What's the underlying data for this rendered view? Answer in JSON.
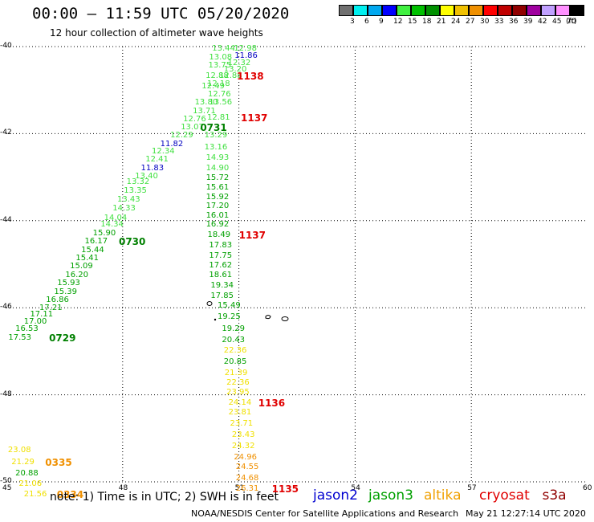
{
  "header": {
    "title": "00:00  –  11:59 UTC 05/20/2020",
    "subtitle": "12 hour collection of altimeter wave heights"
  },
  "colorbar": {
    "bins": [
      {
        "label": "3",
        "color": "#707070"
      },
      {
        "label": "6",
        "color": "#00f0f0"
      },
      {
        "label": "9",
        "color": "#00a8f0"
      },
      {
        "label": "12",
        "color": "#0000ff"
      },
      {
        "label": "15",
        "color": "#40f040"
      },
      {
        "label": "18",
        "color": "#00c000"
      },
      {
        "label": "21",
        "color": "#009000"
      },
      {
        "label": "24",
        "color": "#ffff00"
      },
      {
        "label": "27",
        "color": "#f0c000"
      },
      {
        "label": "30",
        "color": "#f09000"
      },
      {
        "label": "33",
        "color": "#ff0000"
      },
      {
        "label": "36",
        "color": "#c00000"
      },
      {
        "label": "39",
        "color": "#900000"
      },
      {
        "label": "42",
        "color": "#a000a0"
      },
      {
        "label": "45",
        "color": "#c0a0ff"
      },
      {
        "label": "70",
        "color": "#ff90ff"
      },
      {
        "label": "",
        "color": "#000000"
      }
    ],
    "unit": "(ft)"
  },
  "axes": {
    "lon_ticks": [
      "45",
      "48",
      "51",
      "54",
      "57",
      "60"
    ],
    "lat_ticks": [
      "-40",
      "-42",
      "-44",
      "-46",
      "-48",
      "-50"
    ]
  },
  "colors": {
    "light_green": "#40e040",
    "green": "#00a000",
    "blue": "#0000c0",
    "yellow": "#f0e000",
    "orange": "#f09000",
    "red": "#e00000",
    "dark_green": "#008000"
  },
  "labels": [
    {
      "t": "13.44",
      "lon": 50.31,
      "lat": -40.05,
      "c": "light_green"
    },
    {
      "t": "12.98",
      "lon": 50.87,
      "lat": -40.05,
      "c": "light_green"
    },
    {
      "t": "13.08",
      "lon": 50.23,
      "lat": -40.25,
      "c": "light_green"
    },
    {
      "t": "11.86",
      "lon": 50.89,
      "lat": -40.23,
      "c": "blue"
    },
    {
      "t": "13.75",
      "lon": 50.21,
      "lat": -40.44,
      "c": "light_green"
    },
    {
      "t": "12.32",
      "lon": 50.71,
      "lat": -40.38,
      "c": "light_green"
    },
    {
      "t": "13.20",
      "lon": 50.61,
      "lat": -40.53,
      "c": "light_green"
    },
    {
      "t": "12.88",
      "lon": 50.14,
      "lat": -40.68,
      "c": "light_green"
    },
    {
      "t": "12.88",
      "lon": 50.49,
      "lat": -40.68,
      "c": "light_green"
    },
    {
      "t": "1138",
      "lon": 50.95,
      "lat": -40.68,
      "c": "red",
      "big": true
    },
    {
      "t": "12.18",
      "lon": 50.18,
      "lat": -40.87,
      "c": "light_green"
    },
    {
      "t": "12.49",
      "lon": 50.04,
      "lat": -40.93,
      "c": "light_green"
    },
    {
      "t": "12.76",
      "lon": 50.2,
      "lat": -41.1,
      "c": "light_green"
    },
    {
      "t": "13.80",
      "lon": 49.86,
      "lat": -41.3,
      "c": "light_green"
    },
    {
      "t": "13.56",
      "lon": 50.23,
      "lat": -41.3,
      "c": "light_green"
    },
    {
      "t": "13.71",
      "lon": 49.81,
      "lat": -41.49,
      "c": "light_green"
    },
    {
      "t": "12.76",
      "lon": 49.56,
      "lat": -41.68,
      "c": "light_green"
    },
    {
      "t": "12.81",
      "lon": 50.18,
      "lat": -41.64,
      "c": "light_green"
    },
    {
      "t": "1137",
      "lon": 51.05,
      "lat": -41.64,
      "c": "red",
      "big": true
    },
    {
      "t": "13.07",
      "lon": 49.5,
      "lat": -41.87,
      "c": "light_green"
    },
    {
      "t": "0731",
      "lon": 50.0,
      "lat": -41.87,
      "c": "dark_green",
      "big": true
    },
    {
      "t": "12.29",
      "lon": 49.23,
      "lat": -42.05,
      "c": "light_green"
    },
    {
      "t": "13.29",
      "lon": 50.11,
      "lat": -42.05,
      "c": "light_green"
    },
    {
      "t": "11.82",
      "lon": 48.97,
      "lat": -42.25,
      "c": "blue"
    },
    {
      "t": "13.16",
      "lon": 50.11,
      "lat": -42.32,
      "c": "light_green"
    },
    {
      "t": "12.34",
      "lon": 48.75,
      "lat": -42.41,
      "c": "light_green"
    },
    {
      "t": "14.93",
      "lon": 50.15,
      "lat": -42.57,
      "c": "light_green"
    },
    {
      "t": "12.41",
      "lon": 48.59,
      "lat": -42.61,
      "c": "light_green"
    },
    {
      "t": "11.83",
      "lon": 48.47,
      "lat": -42.8,
      "c": "blue"
    },
    {
      "t": "14.90",
      "lon": 50.15,
      "lat": -42.81,
      "c": "light_green"
    },
    {
      "t": "13.40",
      "lon": 48.32,
      "lat": -42.98,
      "c": "light_green"
    },
    {
      "t": "15.72",
      "lon": 50.15,
      "lat": -43.03,
      "c": "green"
    },
    {
      "t": "13.32",
      "lon": 48.1,
      "lat": -43.12,
      "c": "light_green"
    },
    {
      "t": "15.61",
      "lon": 50.15,
      "lat": -43.24,
      "c": "green"
    },
    {
      "t": "13.35",
      "lon": 48.03,
      "lat": -43.32,
      "c": "light_green"
    },
    {
      "t": "15.92",
      "lon": 50.15,
      "lat": -43.46,
      "c": "green"
    },
    {
      "t": "13.43",
      "lon": 47.86,
      "lat": -43.53,
      "c": "light_green"
    },
    {
      "t": "17.20",
      "lon": 50.15,
      "lat": -43.68,
      "c": "green"
    },
    {
      "t": "14.33",
      "lon": 47.74,
      "lat": -43.72,
      "c": "light_green"
    },
    {
      "t": "16.01",
      "lon": 50.15,
      "lat": -43.89,
      "c": "green"
    },
    {
      "t": "14.04",
      "lon": 47.52,
      "lat": -43.94,
      "c": "light_green"
    },
    {
      "t": "14.34",
      "lon": 47.43,
      "lat": -44.1,
      "c": "light_green"
    },
    {
      "t": "16.92",
      "lon": 50.15,
      "lat": -44.1,
      "c": "green"
    },
    {
      "t": "15.90",
      "lon": 47.23,
      "lat": -44.29,
      "c": "green"
    },
    {
      "t": "18.49",
      "lon": 50.19,
      "lat": -44.33,
      "c": "green"
    },
    {
      "t": "1137",
      "lon": 51.0,
      "lat": -44.33,
      "c": "red",
      "big": true
    },
    {
      "t": "16.17",
      "lon": 47.02,
      "lat": -44.49,
      "c": "green"
    },
    {
      "t": "0730",
      "lon": 47.9,
      "lat": -44.49,
      "c": "dark_green",
      "big": true
    },
    {
      "t": "15.44",
      "lon": 46.93,
      "lat": -44.68,
      "c": "green"
    },
    {
      "t": "17.83",
      "lon": 50.23,
      "lat": -44.58,
      "c": "green"
    },
    {
      "t": "15.41",
      "lon": 46.79,
      "lat": -44.87,
      "c": "green"
    },
    {
      "t": "17.75",
      "lon": 50.23,
      "lat": -44.81,
      "c": "green"
    },
    {
      "t": "15.09",
      "lon": 46.64,
      "lat": -45.06,
      "c": "green"
    },
    {
      "t": "17.62",
      "lon": 50.23,
      "lat": -45.03,
      "c": "green"
    },
    {
      "t": "16.20",
      "lon": 46.52,
      "lat": -45.25,
      "c": "green"
    },
    {
      "t": "18.61",
      "lon": 50.23,
      "lat": -45.26,
      "c": "green"
    },
    {
      "t": "15.93",
      "lon": 46.31,
      "lat": -45.45,
      "c": "green"
    },
    {
      "t": "15.39",
      "lon": 46.23,
      "lat": -45.64,
      "c": "green"
    },
    {
      "t": "19.34",
      "lon": 50.27,
      "lat": -45.5,
      "c": "green"
    },
    {
      "t": "16.86",
      "lon": 46.02,
      "lat": -45.83,
      "c": "green"
    },
    {
      "t": "17.85",
      "lon": 50.27,
      "lat": -45.73,
      "c": "green"
    },
    {
      "t": "17.21",
      "lon": 45.85,
      "lat": -46.02,
      "c": "green"
    },
    {
      "t": "15.49",
      "lon": 50.45,
      "lat": -45.96,
      "c": "green"
    },
    {
      "t": "17.11",
      "lon": 45.61,
      "lat": -46.16,
      "c": "green"
    },
    {
      "t": "17.00",
      "lon": 45.45,
      "lat": -46.33,
      "c": "green"
    },
    {
      "t": "19.25",
      "lon": 50.45,
      "lat": -46.22,
      "c": "green"
    },
    {
      "t": "16.53",
      "lon": 45.23,
      "lat": -46.5,
      "c": "green"
    },
    {
      "t": "19.29",
      "lon": 50.56,
      "lat": -46.5,
      "c": "green"
    },
    {
      "t": "17.53",
      "lon": 45.05,
      "lat": -46.7,
      "c": "green"
    },
    {
      "t": "0729",
      "lon": 46.1,
      "lat": -46.7,
      "c": "dark_green",
      "big": true
    },
    {
      "t": "20.43",
      "lon": 50.56,
      "lat": -46.75,
      "c": "green"
    },
    {
      "t": "22.36",
      "lon": 50.61,
      "lat": -47.0,
      "c": "yellow"
    },
    {
      "t": "20.85",
      "lon": 50.61,
      "lat": -47.25,
      "c": "green"
    },
    {
      "t": "21.39",
      "lon": 50.63,
      "lat": -47.5,
      "c": "yellow"
    },
    {
      "t": "22.36",
      "lon": 50.68,
      "lat": -47.73,
      "c": "yellow"
    },
    {
      "t": "23.95",
      "lon": 50.68,
      "lat": -47.96,
      "c": "yellow"
    },
    {
      "t": "24.14",
      "lon": 50.73,
      "lat": -48.2,
      "c": "yellow"
    },
    {
      "t": "1136",
      "lon": 51.5,
      "lat": -48.2,
      "c": "red",
      "big": true
    },
    {
      "t": "23.81",
      "lon": 50.73,
      "lat": -48.42,
      "c": "yellow"
    },
    {
      "t": "23.71",
      "lon": 50.77,
      "lat": -48.68,
      "c": "yellow"
    },
    {
      "t": "23.43",
      "lon": 50.82,
      "lat": -48.93,
      "c": "yellow"
    },
    {
      "t": "24.32",
      "lon": 50.82,
      "lat": -49.18,
      "c": "yellow"
    },
    {
      "t": "24.96",
      "lon": 50.87,
      "lat": -49.44,
      "c": "orange"
    },
    {
      "t": "24.55",
      "lon": 50.92,
      "lat": -49.67,
      "c": "orange"
    },
    {
      "t": "24.68",
      "lon": 50.92,
      "lat": -49.92,
      "c": "orange"
    },
    {
      "t": "26.31",
      "lon": 50.92,
      "lat": -50.16,
      "c": "orange"
    },
    {
      "t": "1135",
      "lon": 51.85,
      "lat": -50.16,
      "c": "red",
      "big": true
    },
    {
      "t": "23.08",
      "lon": 45.04,
      "lat": -49.28,
      "c": "yellow"
    },
    {
      "t": "21.29",
      "lon": 45.13,
      "lat": -49.55,
      "c": "yellow"
    },
    {
      "t": "0335",
      "lon": 46.0,
      "lat": -49.55,
      "c": "orange",
      "big": true
    },
    {
      "t": "20.88",
      "lon": 45.23,
      "lat": -49.81,
      "c": "green"
    },
    {
      "t": "21.06",
      "lon": 45.32,
      "lat": -50.05,
      "c": "yellow"
    },
    {
      "t": "21.56",
      "lon": 45.45,
      "lat": -50.29,
      "c": "yellow"
    },
    {
      "t": "0334",
      "lon": 46.3,
      "lat": -50.29,
      "c": "orange",
      "big": true
    }
  ],
  "footer": {
    "note": "note:  1) Time is in UTC;  2) SWH is in feet",
    "satellites": [
      {
        "name": "jason2",
        "color": "#0000d0"
      },
      {
        "name": "jason3",
        "color": "#00a000"
      },
      {
        "name": "altika",
        "color": "#f0a000"
      },
      {
        "name": "cryosat",
        "color": "#e00000"
      },
      {
        "name": "s3a",
        "color": "#900000"
      }
    ],
    "credit": "NOAA/NESDIS Center for Satellite Applications and Research",
    "timestamp": "May 21 12:27:14 UTC 2020"
  }
}
